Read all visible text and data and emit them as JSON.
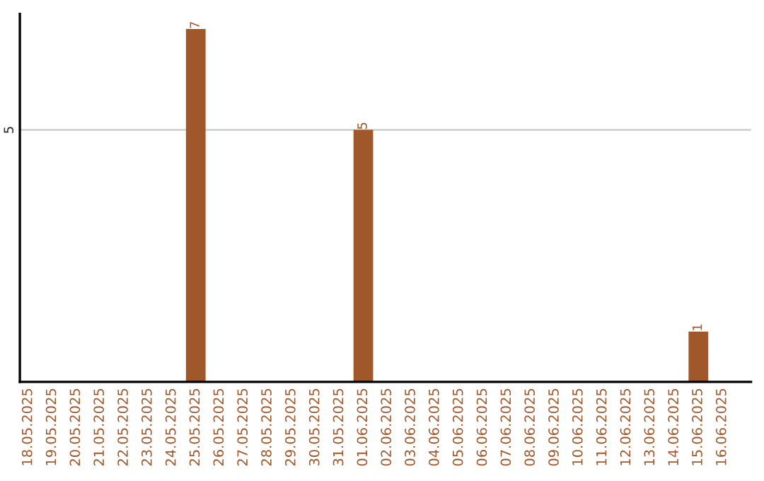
{
  "chart_data": {
    "type": "bar",
    "categories": [
      "18.05.2025",
      "19.05.2025",
      "20.05.2025",
      "21.05.2025",
      "22.05.2025",
      "23.05.2025",
      "24.05.2025",
      "25.05.2025",
      "26.05.2025",
      "27.05.2025",
      "28.05.2025",
      "29.05.2025",
      "30.05.2025",
      "31.05.2025",
      "01.06.2025",
      "02.06.2025",
      "03.06.2025",
      "04.06.2025",
      "05.06.2025",
      "06.06.2025",
      "07.06.2025",
      "08.06.2025",
      "09.06.2025",
      "10.06.2025",
      "11.06.2025",
      "12.06.2025",
      "13.06.2025",
      "14.06.2025",
      "15.06.2025",
      "16.06.2025"
    ],
    "values": [
      null,
      null,
      null,
      null,
      null,
      null,
      null,
      7,
      null,
      null,
      null,
      null,
      null,
      null,
      5,
      null,
      null,
      null,
      null,
      null,
      null,
      null,
      null,
      null,
      null,
      null,
      null,
      null,
      1,
      null
    ],
    "value_labels": [
      null,
      null,
      null,
      null,
      null,
      null,
      null,
      "7",
      null,
      null,
      null,
      null,
      null,
      null,
      "5",
      null,
      null,
      null,
      null,
      null,
      null,
      null,
      null,
      null,
      null,
      null,
      null,
      null,
      "1",
      null
    ],
    "color": "#a0572a",
    "ylim": [
      0,
      7.3
    ],
    "yticks": [
      5
    ],
    "grid": "y",
    "legend": false
  }
}
